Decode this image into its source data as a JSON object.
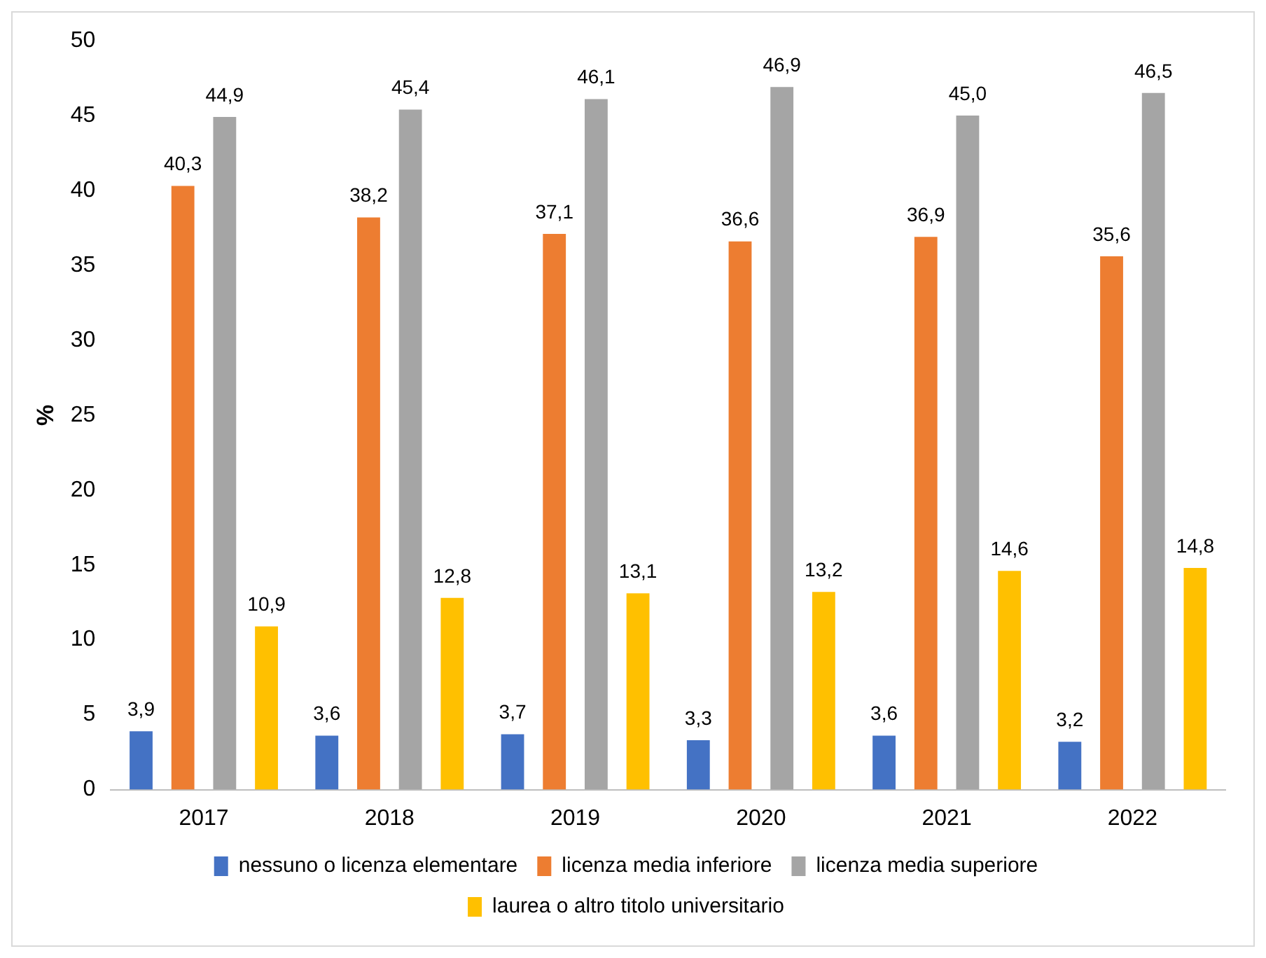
{
  "chart_data": {
    "type": "bar",
    "ylabel": "%",
    "categories": [
      "2017",
      "2018",
      "2019",
      "2020",
      "2021",
      "2022"
    ],
    "series": [
      {
        "name": "nessuno o licenza elementare",
        "color": "#4472c4",
        "values": [
          3.9,
          3.6,
          3.7,
          3.3,
          3.6,
          3.2
        ],
        "value_labels": [
          "3,9",
          "3,6",
          "3,7",
          "3,3",
          "3,6",
          "3,2"
        ]
      },
      {
        "name": "licenza media inferiore",
        "color": "#ed7d31",
        "values": [
          40.3,
          38.2,
          37.1,
          36.6,
          36.9,
          35.6
        ],
        "value_labels": [
          "40,3",
          "38,2",
          "37,1",
          "36,6",
          "36,9",
          "35,6"
        ]
      },
      {
        "name": "licenza media superiore",
        "color": "#a5a5a5",
        "values": [
          44.9,
          45.4,
          46.1,
          46.9,
          45.0,
          46.5
        ],
        "value_labels": [
          "44,9",
          "45,4",
          "46,1",
          "46,9",
          "45,0",
          "46,5"
        ]
      },
      {
        "name": "laurea o altro titolo universitario",
        "color": "#ffc000",
        "values": [
          10.9,
          12.8,
          13.1,
          13.2,
          14.6,
          14.8
        ],
        "value_labels": [
          "10,9",
          "12,8",
          "13,1",
          "13,2",
          "14,6",
          "14,8"
        ]
      }
    ],
    "ylim": [
      0,
      50
    ],
    "yticks": [
      0,
      5,
      10,
      15,
      20,
      25,
      30,
      35,
      40,
      45,
      50
    ],
    "grid": false,
    "legend": "bottom"
  }
}
